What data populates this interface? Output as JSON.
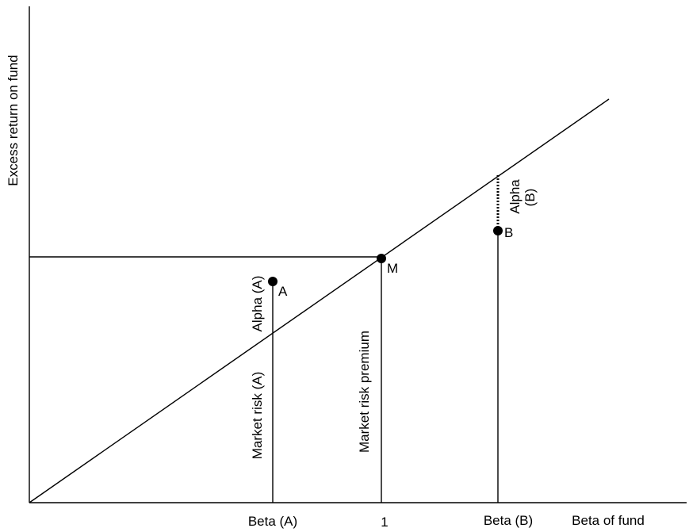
{
  "axes": {
    "y_label": "Excess return on fund",
    "x_label": "Beta of fund"
  },
  "ticks": {
    "beta_a": "Beta (A)",
    "one": "1",
    "beta_b": "Beta (B)"
  },
  "points": {
    "a": "A",
    "m": "M",
    "b": "B"
  },
  "segments": {
    "alpha_a": "Alpha (A)",
    "market_risk_a": "Market risk (A)",
    "market_risk_premium": "Market risk premium",
    "alpha_b_line1": "Alpha",
    "alpha_b_line2": "(B)"
  },
  "colors": {
    "ink": "#000000",
    "background": "#ffffff"
  }
}
